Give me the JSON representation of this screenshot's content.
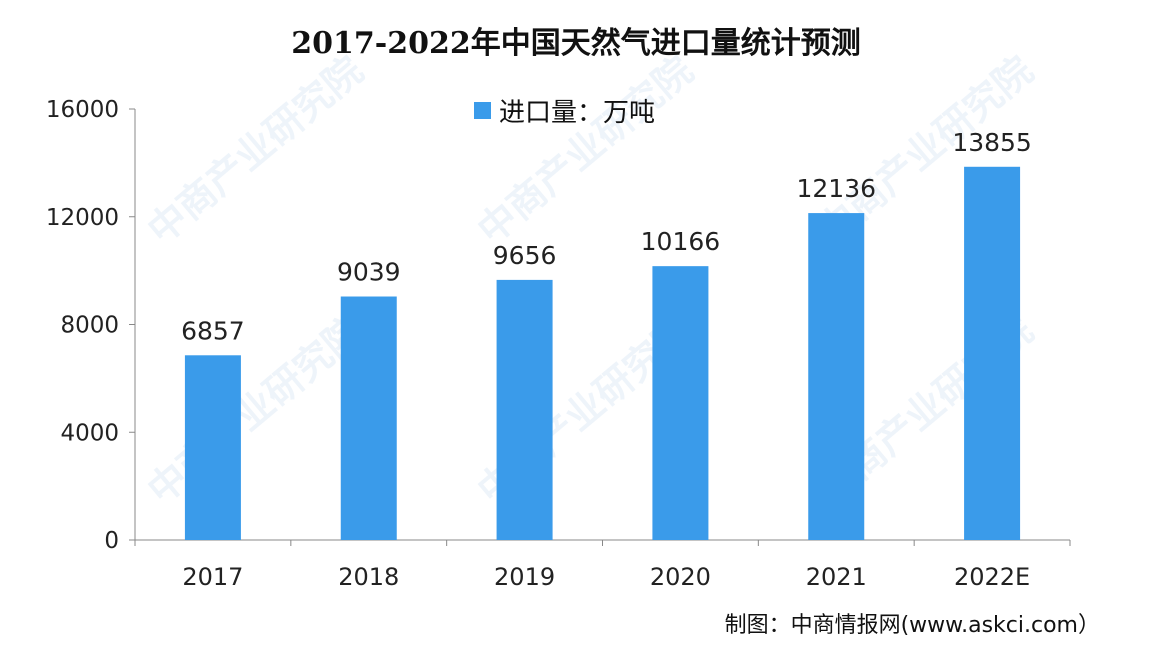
{
  "watermark": "中商产业研究院",
  "chart_data": {
    "type": "bar",
    "title": "2017-2022年中国天然气进口量统计预测",
    "legend": "进口量：万吨",
    "legend_position": "top-center",
    "categories": [
      "2017",
      "2018",
      "2019",
      "2020",
      "2021",
      "2022E"
    ],
    "values": [
      6857,
      9039,
      9656,
      10166,
      12136,
      13855
    ],
    "ylim": [
      0,
      16000
    ],
    "yticks": [
      0,
      4000,
      8000,
      12000,
      16000
    ],
    "xlabel": "",
    "ylabel": "",
    "grid": false,
    "color": "#3a9bea",
    "source": "制图：中商情报网(www.askci.com）"
  }
}
